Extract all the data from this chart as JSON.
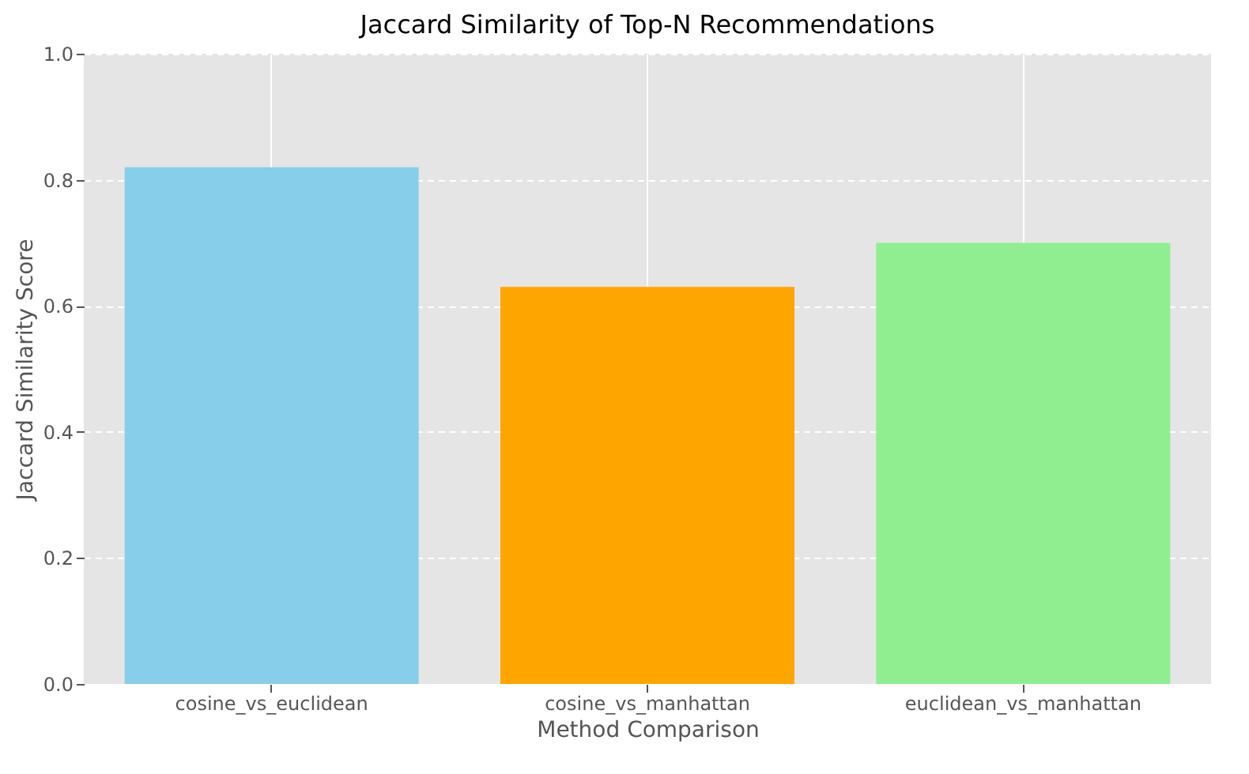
{
  "chart_data": {
    "type": "bar",
    "title": "Jaccard Similarity of Top-N Recommendations",
    "xlabel": "Method Comparison",
    "ylabel": "Jaccard Similarity Score",
    "categories": [
      "cosine_vs_euclidean",
      "cosine_vs_manhattan",
      "euclidean_vs_manhattan"
    ],
    "values": [
      0.82,
      0.63,
      0.7
    ],
    "colors": [
      "#87ceeb",
      "#ffa500",
      "#90ee90"
    ],
    "ylim": [
      0,
      1
    ],
    "yticks": [
      {
        "value": 0,
        "label": "0.0"
      },
      {
        "value": 0.2,
        "label": "0.2"
      },
      {
        "value": 0.4,
        "label": "0.4"
      },
      {
        "value": 0.6,
        "label": "0.6"
      },
      {
        "value": 0.8,
        "label": "0.8"
      },
      {
        "value": 1,
        "label": "1.0"
      }
    ],
    "grid": true
  }
}
